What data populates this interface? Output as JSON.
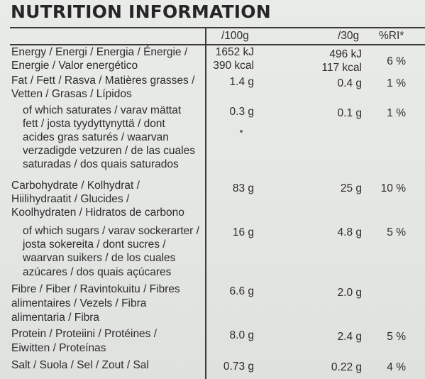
{
  "title": "NUTRITION INFORMATION",
  "headers": {
    "per100": "/100g",
    "per30": "/30g",
    "ri": "%RI*"
  },
  "rows": {
    "energy": {
      "label": [
        "Energy / Energi / Energia / Énergie /",
        "Energie / Valor energético"
      ],
      "per100": [
        "1652 kJ",
        "390 kcal"
      ],
      "per30": [
        "496 kJ",
        "117 kcal"
      ],
      "ri": "6 %"
    },
    "fat": {
      "label": [
        "Fat / Fett / Rasva / Matières grasses /",
        "Vetten / Grasas / Lípidos"
      ],
      "per100": "1.4 g",
      "per30": "0.4 g",
      "ri": "1 %"
    },
    "saturates": {
      "label": [
        "of which saturates / varav mättat",
        "fett / josta tyydyttynyttä / dont",
        "acides gras saturés / waarvan",
        "verzadigde vetzuren / de las cuales",
        "saturadas / dos quais saturados"
      ],
      "per100": "0.3 g",
      "per30": "0.1 g",
      "ri": "1 %"
    },
    "carbohydrate": {
      "label": [
        "Carbohydrate / Kolhydrat / Hiilihydraatit / Glucides /",
        "Hiilihydraatit / Glucides /",
        "Koolhydraten / Hidratos de carbono"
      ],
      "per100": "83 g",
      "per30": "25 g",
      "ri": "10 %"
    },
    "sugars": {
      "label": [
        "of which sugars / varav sockerarter /",
        "josta sokereita / dont sucres /",
        "waarvan suikers / de los cuales",
        "azúcares / dos quais açúcares"
      ],
      "per100": "16 g",
      "per30": "4.8 g",
      "ri": "5 %"
    },
    "fibre": {
      "label": [
        "Fibre / Fiber / Ravintokuitu / Fibres",
        "alimentaires / Vezels / Fibra",
        "alimentaria / Fibra"
      ],
      "per100": "6.6 g",
      "per30": "2.0 g",
      "ri": ""
    },
    "protein": {
      "label": [
        "Protein / Proteiini / Protéines /",
        "Eiwitten / Proteínas"
      ],
      "per100": "8.0 g",
      "per30": "2.4 g",
      "ri": "5 %"
    },
    "salt": {
      "label": [
        "Salt / Suola / Sel / Zout / Sal"
      ],
      "per100": "0.73 g",
      "per30": "0.22 g",
      "ri": "4 %"
    }
  }
}
